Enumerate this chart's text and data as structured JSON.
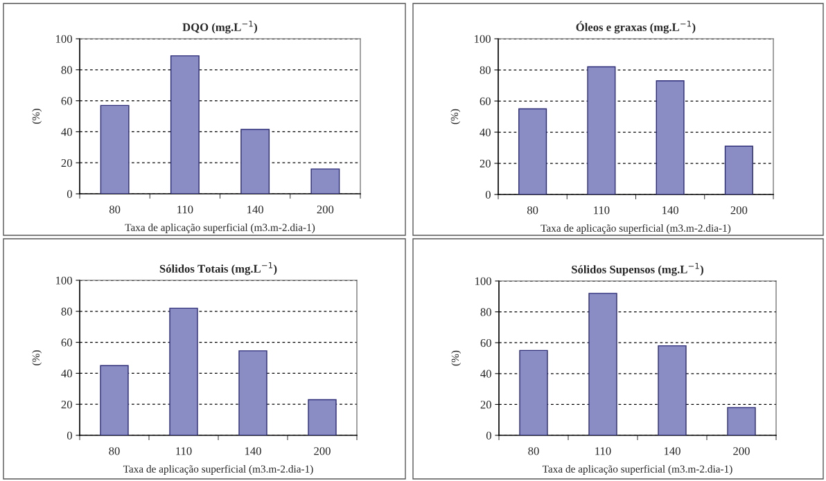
{
  "chart_data": [
    {
      "type": "bar",
      "title": "DQO (mg.L$^{−1}$)",
      "xlabel": "Taxa de aplicação superficial (m3.m-2.dia-1)",
      "ylabel": "(%)",
      "categories": [
        "80",
        "110",
        "140",
        "200"
      ],
      "values": [
        57,
        89,
        41.5,
        16
      ],
      "color": "#8a8dc4",
      "ylim": [
        0,
        100
      ],
      "yticks": [
        0,
        20,
        40,
        60,
        80,
        100
      ],
      "grid": "y",
      "line_style": "dashed"
    },
    {
      "type": "bar",
      "title": "Óleos e graxas (mg.L$^{−1}$)",
      "xlabel": "Taxa de aplicação superficial (m3.m-2.dia-1)",
      "ylabel": "(%)",
      "categories": [
        "80",
        "110",
        "140",
        "200"
      ],
      "values": [
        55,
        82,
        73,
        31
      ],
      "color": "#8a8dc4",
      "ylim": [
        0,
        100
      ],
      "yticks": [
        0,
        20,
        40,
        60,
        80,
        100
      ],
      "grid": "y",
      "line_style": "dashed"
    },
    {
      "type": "bar",
      "title": "Sólidos Totais (mg.L$^{−1}$)",
      "xlabel": "Taxa de aplicação superficial (m3.m-2.dia-1)",
      "ylabel": "(%)",
      "categories": [
        "80",
        "110",
        "140",
        "200"
      ],
      "values": [
        45,
        82,
        54.5,
        23
      ],
      "color": "#8a8dc4",
      "ylim": [
        0,
        100
      ],
      "yticks": [
        0,
        20,
        40,
        60,
        80,
        100
      ],
      "grid": "y",
      "line_style": "dashed"
    },
    {
      "type": "bar",
      "title": "Sólidos Supensos (mg.L$^{−1}$)",
      "xlabel": "Taxa de aplicação superficial (m3.m-2.dia-1)",
      "ylabel": "(%)",
      "categories": [
        "80",
        "110",
        "140",
        "200"
      ],
      "values": [
        55,
        92,
        58,
        18
      ],
      "color": "#8a8dc4",
      "ylim": [
        0,
        100
      ],
      "yticks": [
        0,
        20,
        40,
        60,
        80,
        100
      ],
      "grid": "y",
      "line_style": "dashed"
    }
  ]
}
